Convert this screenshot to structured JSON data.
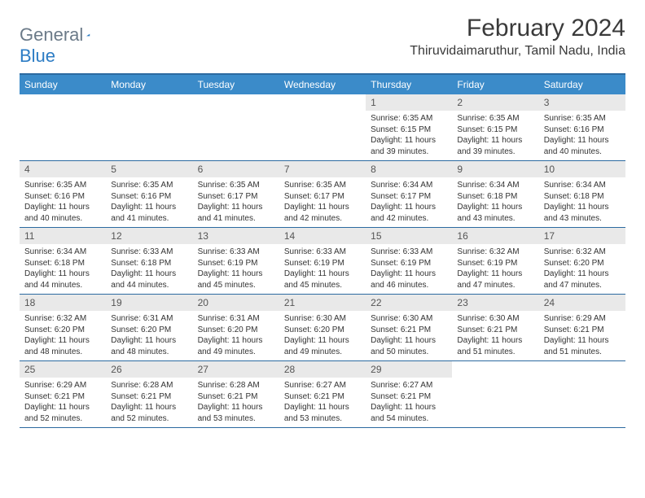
{
  "logo": {
    "word1": "General",
    "word2": "Blue"
  },
  "title": "February 2024",
  "location": "Thiruvidaimaruthur, Tamil Nadu, India",
  "colors": {
    "header_bg": "#3b8bc9",
    "header_text": "#ffffff",
    "border": "#2c6aa0",
    "daynum_bg": "#e9e9e9",
    "text": "#333333",
    "logo_gray": "#6b7a88",
    "logo_blue": "#2c7cc4"
  },
  "weekdays": [
    "Sunday",
    "Monday",
    "Tuesday",
    "Wednesday",
    "Thursday",
    "Friday",
    "Saturday"
  ],
  "calendar": {
    "start_weekday_index": 4,
    "days": [
      {
        "n": 1,
        "sunrise": "6:35 AM",
        "sunset": "6:15 PM",
        "daylight": "11 hours and 39 minutes."
      },
      {
        "n": 2,
        "sunrise": "6:35 AM",
        "sunset": "6:15 PM",
        "daylight": "11 hours and 39 minutes."
      },
      {
        "n": 3,
        "sunrise": "6:35 AM",
        "sunset": "6:16 PM",
        "daylight": "11 hours and 40 minutes."
      },
      {
        "n": 4,
        "sunrise": "6:35 AM",
        "sunset": "6:16 PM",
        "daylight": "11 hours and 40 minutes."
      },
      {
        "n": 5,
        "sunrise": "6:35 AM",
        "sunset": "6:16 PM",
        "daylight": "11 hours and 41 minutes."
      },
      {
        "n": 6,
        "sunrise": "6:35 AM",
        "sunset": "6:17 PM",
        "daylight": "11 hours and 41 minutes."
      },
      {
        "n": 7,
        "sunrise": "6:35 AM",
        "sunset": "6:17 PM",
        "daylight": "11 hours and 42 minutes."
      },
      {
        "n": 8,
        "sunrise": "6:34 AM",
        "sunset": "6:17 PM",
        "daylight": "11 hours and 42 minutes."
      },
      {
        "n": 9,
        "sunrise": "6:34 AM",
        "sunset": "6:18 PM",
        "daylight": "11 hours and 43 minutes."
      },
      {
        "n": 10,
        "sunrise": "6:34 AM",
        "sunset": "6:18 PM",
        "daylight": "11 hours and 43 minutes."
      },
      {
        "n": 11,
        "sunrise": "6:34 AM",
        "sunset": "6:18 PM",
        "daylight": "11 hours and 44 minutes."
      },
      {
        "n": 12,
        "sunrise": "6:33 AM",
        "sunset": "6:18 PM",
        "daylight": "11 hours and 44 minutes."
      },
      {
        "n": 13,
        "sunrise": "6:33 AM",
        "sunset": "6:19 PM",
        "daylight": "11 hours and 45 minutes."
      },
      {
        "n": 14,
        "sunrise": "6:33 AM",
        "sunset": "6:19 PM",
        "daylight": "11 hours and 45 minutes."
      },
      {
        "n": 15,
        "sunrise": "6:33 AM",
        "sunset": "6:19 PM",
        "daylight": "11 hours and 46 minutes."
      },
      {
        "n": 16,
        "sunrise": "6:32 AM",
        "sunset": "6:19 PM",
        "daylight": "11 hours and 47 minutes."
      },
      {
        "n": 17,
        "sunrise": "6:32 AM",
        "sunset": "6:20 PM",
        "daylight": "11 hours and 47 minutes."
      },
      {
        "n": 18,
        "sunrise": "6:32 AM",
        "sunset": "6:20 PM",
        "daylight": "11 hours and 48 minutes."
      },
      {
        "n": 19,
        "sunrise": "6:31 AM",
        "sunset": "6:20 PM",
        "daylight": "11 hours and 48 minutes."
      },
      {
        "n": 20,
        "sunrise": "6:31 AM",
        "sunset": "6:20 PM",
        "daylight": "11 hours and 49 minutes."
      },
      {
        "n": 21,
        "sunrise": "6:30 AM",
        "sunset": "6:20 PM",
        "daylight": "11 hours and 49 minutes."
      },
      {
        "n": 22,
        "sunrise": "6:30 AM",
        "sunset": "6:21 PM",
        "daylight": "11 hours and 50 minutes."
      },
      {
        "n": 23,
        "sunrise": "6:30 AM",
        "sunset": "6:21 PM",
        "daylight": "11 hours and 51 minutes."
      },
      {
        "n": 24,
        "sunrise": "6:29 AM",
        "sunset": "6:21 PM",
        "daylight": "11 hours and 51 minutes."
      },
      {
        "n": 25,
        "sunrise": "6:29 AM",
        "sunset": "6:21 PM",
        "daylight": "11 hours and 52 minutes."
      },
      {
        "n": 26,
        "sunrise": "6:28 AM",
        "sunset": "6:21 PM",
        "daylight": "11 hours and 52 minutes."
      },
      {
        "n": 27,
        "sunrise": "6:28 AM",
        "sunset": "6:21 PM",
        "daylight": "11 hours and 53 minutes."
      },
      {
        "n": 28,
        "sunrise": "6:27 AM",
        "sunset": "6:21 PM",
        "daylight": "11 hours and 53 minutes."
      },
      {
        "n": 29,
        "sunrise": "6:27 AM",
        "sunset": "6:21 PM",
        "daylight": "11 hours and 54 minutes."
      }
    ]
  },
  "labels": {
    "sunrise": "Sunrise:",
    "sunset": "Sunset:",
    "daylight": "Daylight:"
  }
}
